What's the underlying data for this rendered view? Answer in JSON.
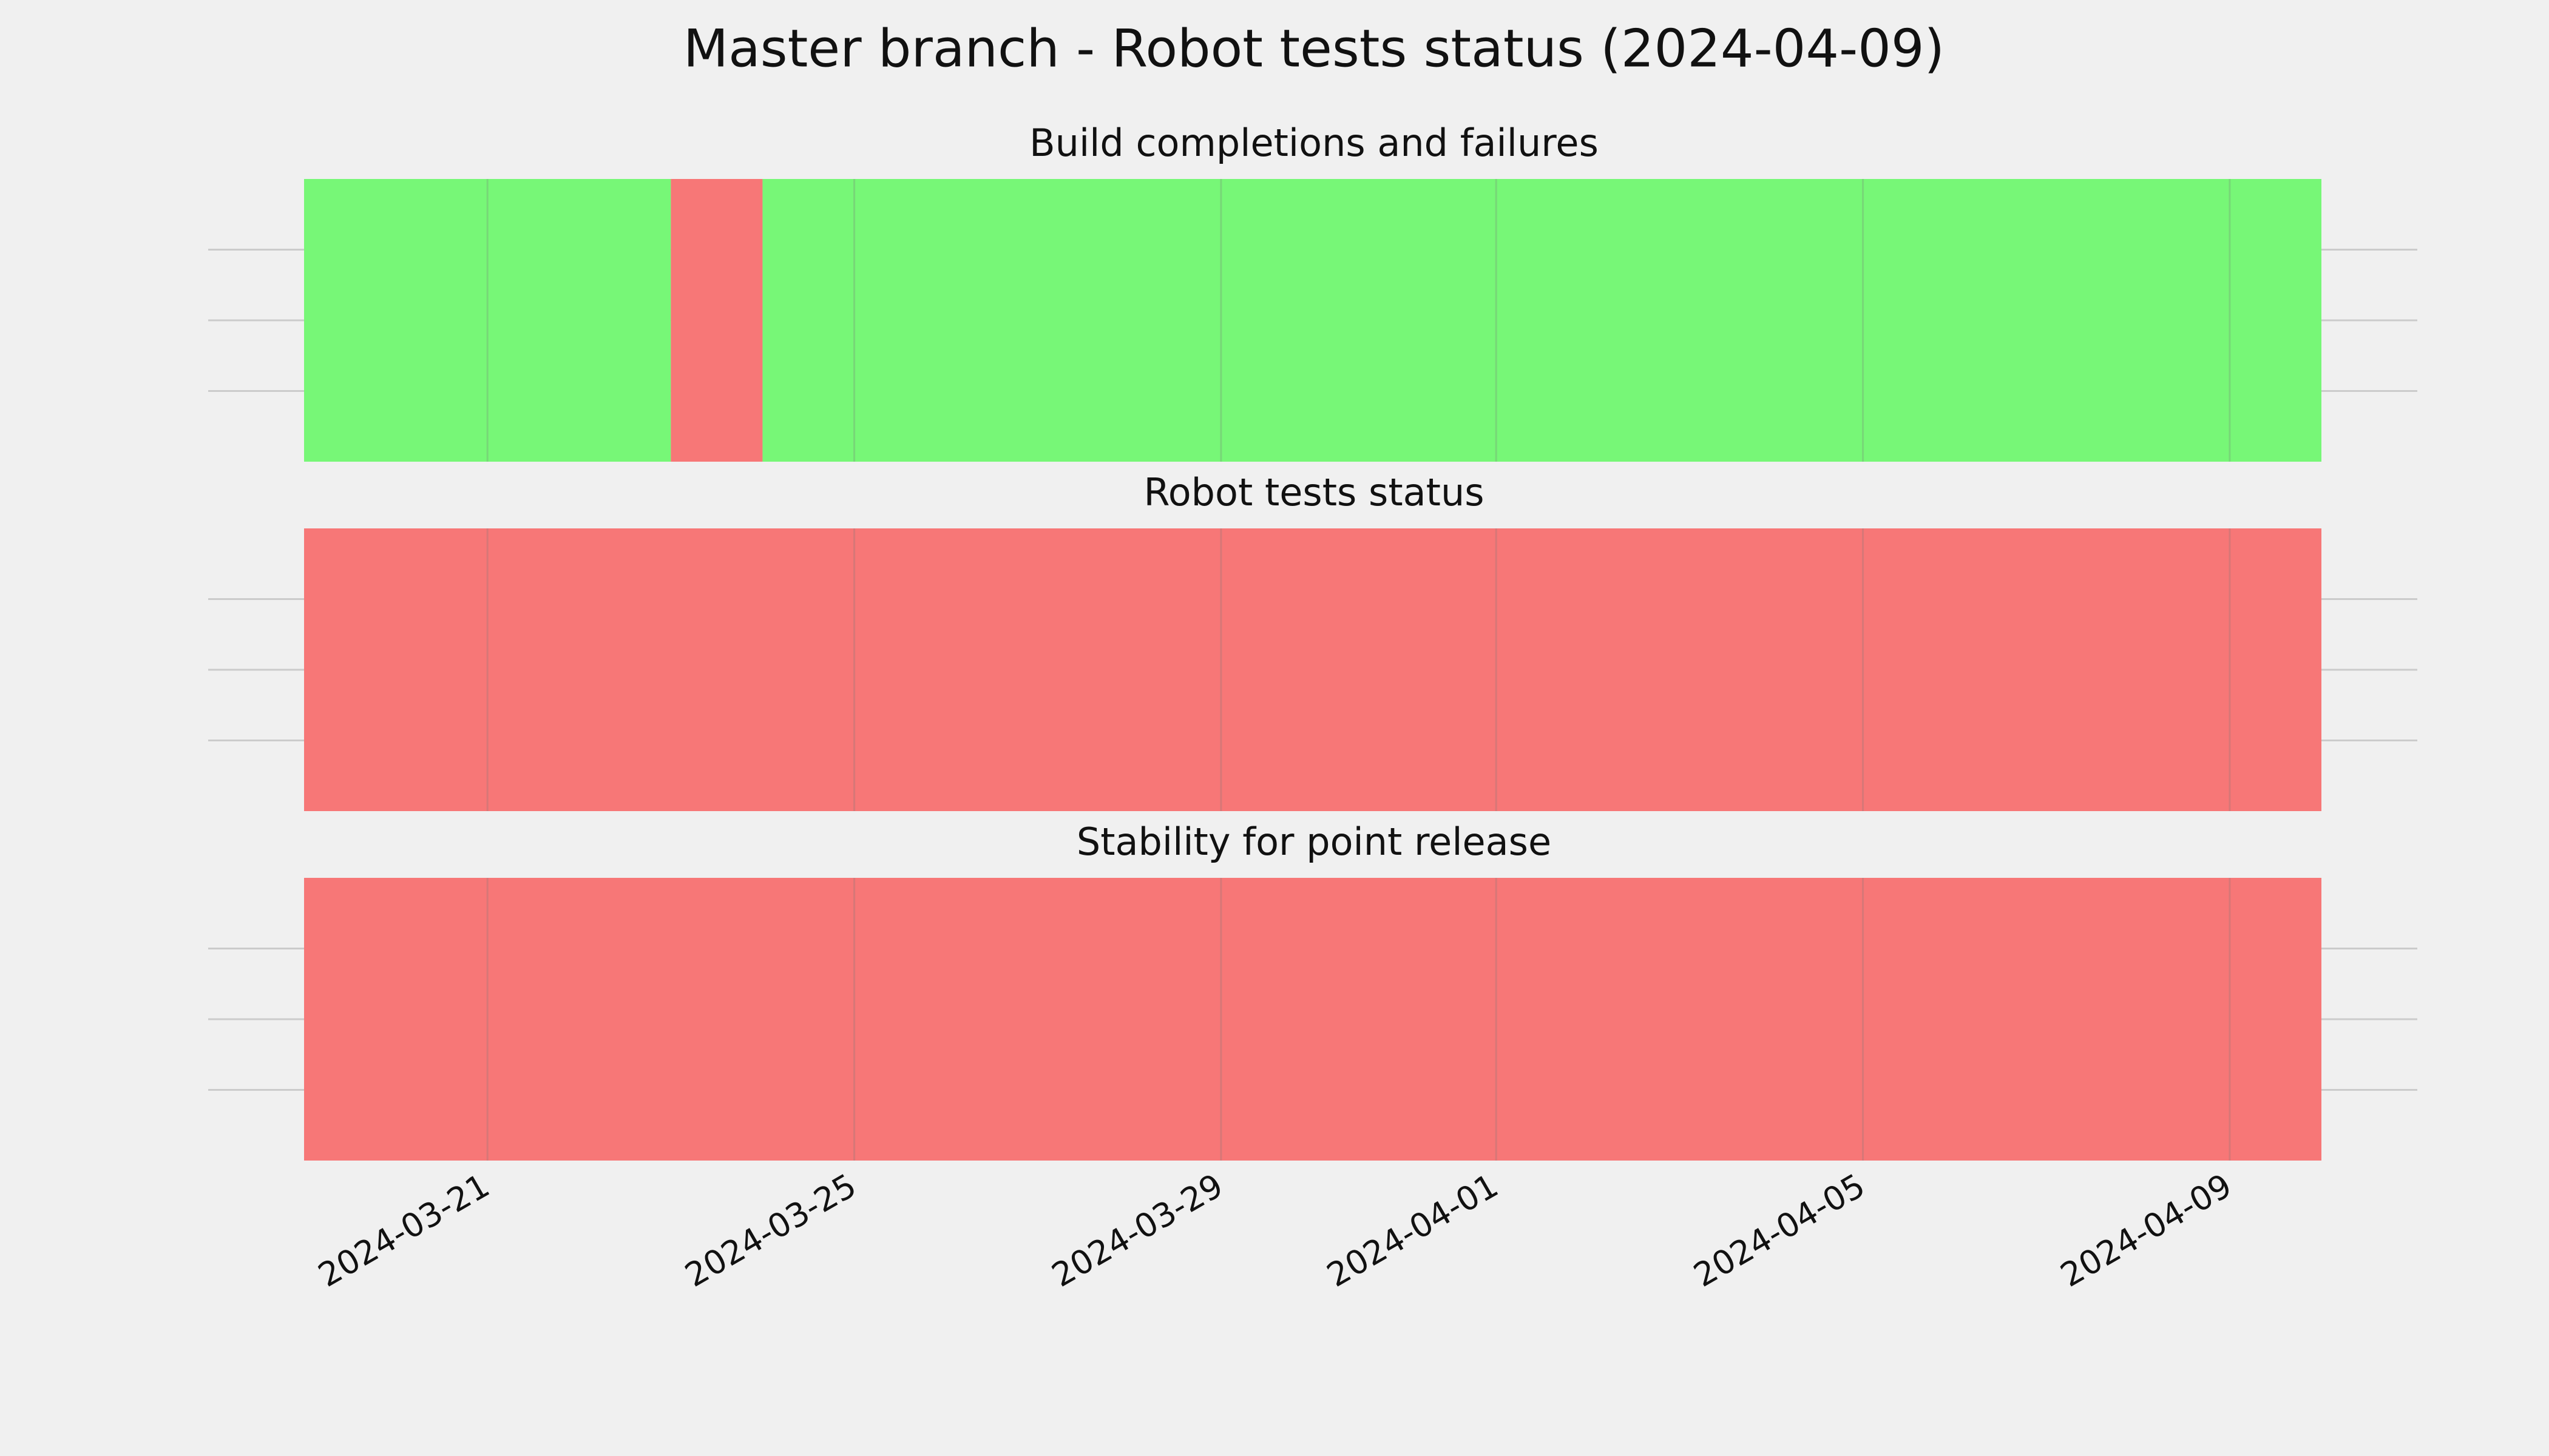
{
  "title": "Master branch - Robot tests status (2024-04-09)",
  "chart_data": [
    {
      "type": "timeline",
      "title": "Build completions and failures",
      "x": [
        "2024-03-19",
        "2024-03-23",
        "2024-03-24",
        "2024-04-10"
      ],
      "colors": [
        "#77f777",
        "#f77777",
        "#77f777"
      ],
      "xlim": [
        "2024-03-19",
        "2024-04-10"
      ],
      "xticks": [
        "2024-03-21",
        "2024-03-25",
        "2024-03-29",
        "2024-04-01",
        "2024-04-05",
        "2024-04-09"
      ],
      "ylim": [
        0,
        1
      ],
      "yticks": [
        0.25,
        0.5,
        0.75
      ],
      "grid": true
    },
    {
      "type": "timeline",
      "title": "Robot tests status",
      "x": [
        "2024-03-19",
        "2024-04-10"
      ],
      "colors": [
        "#f77777"
      ],
      "xlim": [
        "2024-03-19",
        "2024-04-10"
      ],
      "xticks": [
        "2024-03-21",
        "2024-03-25",
        "2024-03-29",
        "2024-04-01",
        "2024-04-05",
        "2024-04-09"
      ],
      "ylim": [
        0,
        1
      ],
      "yticks": [
        0.25,
        0.5,
        0.75
      ],
      "grid": true
    },
    {
      "type": "timeline",
      "title": "Stability for point release",
      "x": [
        "2024-03-19",
        "2024-04-10"
      ],
      "colors": [
        "#f77777"
      ],
      "xlim": [
        "2024-03-19",
        "2024-04-10"
      ],
      "xticks": [
        "2024-03-21",
        "2024-03-25",
        "2024-03-29",
        "2024-04-01",
        "2024-04-05",
        "2024-04-09"
      ],
      "ylim": [
        0,
        1
      ],
      "yticks": [
        0.25,
        0.5,
        0.75
      ],
      "grid": true
    }
  ]
}
